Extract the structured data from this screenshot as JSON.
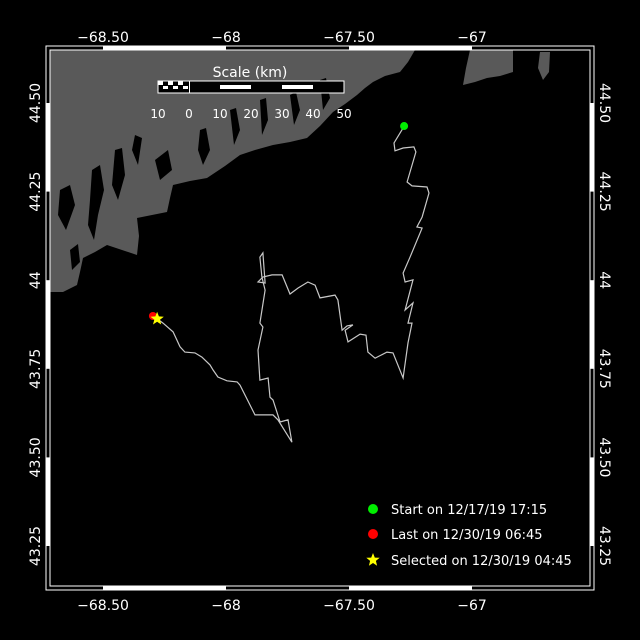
{
  "map": {
    "land_color": "#595959",
    "water_color": "#000000",
    "track_color": "#c8c8c8",
    "lon_ticks": [
      {
        "value": -68.5,
        "label": "−68.50"
      },
      {
        "value": -68,
        "label": "−68"
      },
      {
        "value": -67.5,
        "label": "−67.50"
      },
      {
        "value": -67,
        "label": "−67"
      }
    ],
    "lat_ticks": [
      {
        "value": 44.5,
        "label": "44.50"
      },
      {
        "value": 44.25,
        "label": "44.25"
      },
      {
        "value": 44,
        "label": "44"
      },
      {
        "value": 43.75,
        "label": "43.75"
      },
      {
        "value": 43.5,
        "label": "43.50"
      },
      {
        "value": 43.25,
        "label": "43.25"
      }
    ],
    "scale": {
      "title": "Scale (km)",
      "labels": [
        "10",
        "0",
        "10",
        "20",
        "30",
        "40",
        "50"
      ]
    },
    "track": [
      [
        -67.276,
        44.435
      ],
      [
        -67.285,
        44.424
      ],
      [
        -67.317,
        44.387
      ],
      [
        -67.313,
        44.365
      ],
      [
        -67.28,
        44.373
      ],
      [
        -67.236,
        44.376
      ],
      [
        -67.228,
        44.362
      ],
      [
        -67.264,
        44.277
      ],
      [
        -67.244,
        44.266
      ],
      [
        -67.183,
        44.263
      ],
      [
        -67.175,
        44.246
      ],
      [
        -67.203,
        44.178
      ],
      [
        -67.224,
        44.15
      ],
      [
        -67.203,
        44.147
      ],
      [
        -67.252,
        44.065
      ],
      [
        -67.28,
        44.02
      ],
      [
        -67.272,
        43.995
      ],
      [
        -67.24,
        44.001
      ],
      [
        -67.272,
        43.916
      ],
      [
        -67.24,
        43.936
      ],
      [
        -67.26,
        43.879
      ],
      [
        -67.244,
        43.879
      ],
      [
        -67.26,
        43.823
      ],
      [
        -67.28,
        43.724
      ],
      [
        -67.321,
        43.795
      ],
      [
        -67.346,
        43.797
      ],
      [
        -67.394,
        43.78
      ],
      [
        -67.423,
        43.797
      ],
      [
        -67.431,
        43.845
      ],
      [
        -67.455,
        43.848
      ],
      [
        -67.504,
        43.826
      ],
      [
        -67.516,
        43.859
      ],
      [
        -67.484,
        43.874
      ],
      [
        -67.508,
        43.871
      ],
      [
        -67.528,
        43.859
      ],
      [
        -67.545,
        43.944
      ],
      [
        -67.557,
        43.958
      ],
      [
        -67.618,
        43.95
      ],
      [
        -67.638,
        43.986
      ],
      [
        -67.667,
        43.995
      ],
      [
        -67.707,
        43.978
      ],
      [
        -67.74,
        43.961
      ],
      [
        -67.772,
        44.015
      ],
      [
        -67.813,
        44.015
      ],
      [
        -67.85,
        44.009
      ],
      [
        -67.87,
        43.995
      ],
      [
        -67.841,
        43.992
      ],
      [
        -67.85,
        44.077
      ],
      [
        -67.862,
        44.065
      ],
      [
        -67.854,
        44.009
      ],
      [
        -67.841,
        43.972
      ],
      [
        -67.862,
        43.879
      ],
      [
        -67.85,
        43.868
      ],
      [
        -67.87,
        43.803
      ],
      [
        -67.862,
        43.718
      ],
      [
        -67.829,
        43.724
      ],
      [
        -67.821,
        43.67
      ],
      [
        -67.809,
        43.662
      ],
      [
        -67.78,
        43.6
      ],
      [
        -67.748,
        43.606
      ],
      [
        -67.732,
        43.543
      ],
      [
        -67.789,
        43.606
      ],
      [
        -67.809,
        43.62
      ],
      [
        -67.882,
        43.62
      ],
      [
        -67.943,
        43.704
      ],
      [
        -67.955,
        43.713
      ],
      [
        -67.996,
        43.716
      ],
      [
        -68.033,
        43.727
      ],
      [
        -68.053,
        43.747
      ],
      [
        -68.065,
        43.761
      ],
      [
        -68.098,
        43.783
      ],
      [
        -68.126,
        43.795
      ],
      [
        -68.167,
        43.797
      ],
      [
        -68.187,
        43.812
      ],
      [
        -68.215,
        43.854
      ],
      [
        -68.256,
        43.879
      ],
      [
        -68.28,
        43.891
      ],
      [
        -68.297,
        43.899
      ]
    ],
    "start": {
      "lon": -67.276,
      "lat": 44.435,
      "color": "#00ee00"
    },
    "last": {
      "lon": -68.297,
      "lat": 43.899,
      "color": "#ff0000"
    },
    "selected": {
      "lon": -68.28,
      "lat": 43.891,
      "color": "#ffff00"
    }
  },
  "legend": {
    "start": "Start on 12/17/19 17:15",
    "last": "Last on 12/30/19 06:45",
    "selected": "Selected on 12/30/19 04:45"
  }
}
